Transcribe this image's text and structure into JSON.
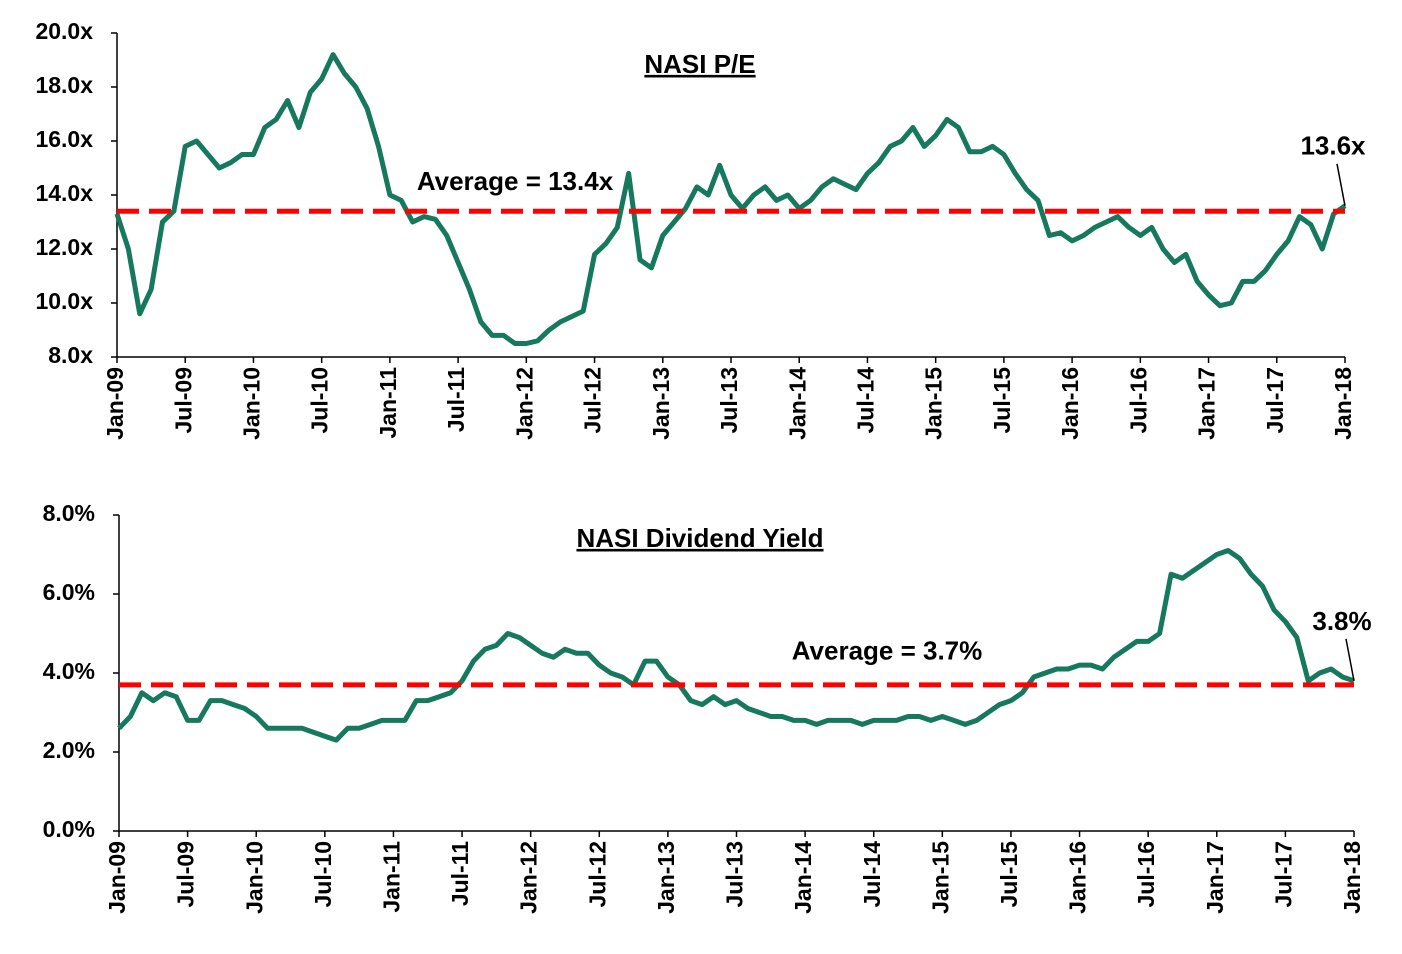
{
  "chart_data": [
    {
      "type": "line",
      "title": "NASI P/E",
      "x": [
        "Jan-09",
        "Feb-09",
        "Mar-09",
        "Apr-09",
        "May-09",
        "Jun-09",
        "Jul-09",
        "Aug-09",
        "Sep-09",
        "Oct-09",
        "Nov-09",
        "Dec-09",
        "Jan-10",
        "Feb-10",
        "Mar-10",
        "Apr-10",
        "May-10",
        "Jun-10",
        "Jul-10",
        "Aug-10",
        "Sep-10",
        "Oct-10",
        "Nov-10",
        "Dec-10",
        "Jan-11",
        "Feb-11",
        "Mar-11",
        "Apr-11",
        "May-11",
        "Jun-11",
        "Jul-11",
        "Aug-11",
        "Sep-11",
        "Oct-11",
        "Nov-11",
        "Dec-11",
        "Jan-12",
        "Feb-12",
        "Mar-12",
        "Apr-12",
        "May-12",
        "Jun-12",
        "Jul-12",
        "Aug-12",
        "Sep-12",
        "Oct-12",
        "Nov-12",
        "Dec-12",
        "Jan-13",
        "Feb-13",
        "Mar-13",
        "Apr-13",
        "May-13",
        "Jun-13",
        "Jul-13",
        "Aug-13",
        "Sep-13",
        "Oct-13",
        "Nov-13",
        "Dec-13",
        "Jan-14",
        "Feb-14",
        "Mar-14",
        "Apr-14",
        "May-14",
        "Jun-14",
        "Jul-14",
        "Aug-14",
        "Sep-14",
        "Oct-14",
        "Nov-14",
        "Dec-14",
        "Jan-15",
        "Feb-15",
        "Mar-15",
        "Apr-15",
        "May-15",
        "Jun-15",
        "Jul-15",
        "Aug-15",
        "Sep-15",
        "Oct-15",
        "Nov-15",
        "Dec-15",
        "Jan-16",
        "Feb-16",
        "Mar-16",
        "Apr-16",
        "May-16",
        "Jun-16",
        "Jul-16",
        "Aug-16",
        "Sep-16",
        "Oct-16",
        "Nov-16",
        "Dec-16",
        "Jan-17",
        "Feb-17",
        "Mar-17",
        "Apr-17",
        "May-17",
        "Jun-17",
        "Jul-17",
        "Aug-17",
        "Sep-17",
        "Oct-17",
        "Nov-17",
        "Dec-17",
        "Jan-18"
      ],
      "series": [
        {
          "name": "NASI P/E",
          "color": "#16785c",
          "values": [
            13.3,
            12.0,
            9.6,
            10.5,
            13.0,
            13.4,
            15.8,
            16.0,
            15.5,
            15.0,
            15.2,
            15.5,
            15.5,
            16.5,
            16.8,
            17.5,
            16.5,
            17.8,
            18.3,
            19.2,
            18.5,
            18.0,
            17.2,
            15.8,
            14.0,
            13.8,
            13.0,
            13.2,
            13.1,
            12.5,
            11.5,
            10.5,
            9.3,
            8.8,
            8.8,
            8.5,
            8.5,
            8.6,
            9.0,
            9.3,
            9.5,
            9.7,
            11.8,
            12.2,
            12.8,
            14.8,
            11.6,
            11.3,
            12.5,
            13.0,
            13.5,
            14.3,
            14.0,
            15.1,
            14.0,
            13.5,
            14.0,
            14.3,
            13.8,
            14.0,
            13.5,
            13.8,
            14.3,
            14.6,
            14.4,
            14.2,
            14.8,
            15.2,
            15.8,
            16.0,
            16.5,
            15.8,
            16.2,
            16.8,
            16.5,
            15.6,
            15.6,
            15.8,
            15.5,
            14.8,
            14.2,
            13.8,
            12.5,
            12.6,
            12.3,
            12.5,
            12.8,
            13.0,
            13.2,
            12.8,
            12.5,
            12.8,
            12.0,
            11.5,
            11.8,
            10.8,
            10.3,
            9.9,
            10.0,
            10.8,
            10.8,
            11.2,
            11.8,
            12.3,
            13.2,
            12.9,
            12.0,
            13.3,
            13.6
          ]
        }
      ],
      "xticks": [
        "Jan-09",
        "Jul-09",
        "Jan-10",
        "Jul-10",
        "Jan-11",
        "Jul-11",
        "Jan-12",
        "Jul-12",
        "Jan-13",
        "Jul-13",
        "Jan-14",
        "Jul-14",
        "Jan-15",
        "Jul-15",
        "Jan-16",
        "Jul-16",
        "Jan-17",
        "Jul-17",
        "Jan-18"
      ],
      "ylim": [
        8,
        20
      ],
      "yticks": [
        {
          "value": 8,
          "label": "8.0x"
        },
        {
          "value": 10,
          "label": "10.0x"
        },
        {
          "value": 12,
          "label": "12.0x"
        },
        {
          "value": 14,
          "label": "14.0x"
        },
        {
          "value": 16,
          "label": "16.0x"
        },
        {
          "value": 18,
          "label": "18.0x"
        },
        {
          "value": 20,
          "label": "20.0x"
        }
      ],
      "average": {
        "value": 13.4,
        "label": "Average = 13.4x",
        "color": "#ff0000"
      },
      "last_label": {
        "value": 13.6,
        "label": "13.6x"
      }
    },
    {
      "type": "line",
      "title": "NASI Dividend Yield",
      "x": [
        "Jan-09",
        "Feb-09",
        "Mar-09",
        "Apr-09",
        "May-09",
        "Jun-09",
        "Jul-09",
        "Aug-09",
        "Sep-09",
        "Oct-09",
        "Nov-09",
        "Dec-09",
        "Jan-10",
        "Feb-10",
        "Mar-10",
        "Apr-10",
        "May-10",
        "Jun-10",
        "Jul-10",
        "Aug-10",
        "Sep-10",
        "Oct-10",
        "Nov-10",
        "Dec-10",
        "Jan-11",
        "Feb-11",
        "Mar-11",
        "Apr-11",
        "May-11",
        "Jun-11",
        "Jul-11",
        "Aug-11",
        "Sep-11",
        "Oct-11",
        "Nov-11",
        "Dec-11",
        "Jan-12",
        "Feb-12",
        "Mar-12",
        "Apr-12",
        "May-12",
        "Jun-12",
        "Jul-12",
        "Aug-12",
        "Sep-12",
        "Oct-12",
        "Nov-12",
        "Dec-12",
        "Jan-13",
        "Feb-13",
        "Mar-13",
        "Apr-13",
        "May-13",
        "Jun-13",
        "Jul-13",
        "Aug-13",
        "Sep-13",
        "Oct-13",
        "Nov-13",
        "Dec-13",
        "Jan-14",
        "Feb-14",
        "Mar-14",
        "Apr-14",
        "May-14",
        "Jun-14",
        "Jul-14",
        "Aug-14",
        "Sep-14",
        "Oct-14",
        "Nov-14",
        "Dec-14",
        "Jan-15",
        "Feb-15",
        "Mar-15",
        "Apr-15",
        "May-15",
        "Jun-15",
        "Jul-15",
        "Aug-15",
        "Sep-15",
        "Oct-15",
        "Nov-15",
        "Dec-15",
        "Jan-16",
        "Feb-16",
        "Mar-16",
        "Apr-16",
        "May-16",
        "Jun-16",
        "Jul-16",
        "Aug-16",
        "Sep-16",
        "Oct-16",
        "Nov-16",
        "Dec-16",
        "Jan-17",
        "Feb-17",
        "Mar-17",
        "Apr-17",
        "May-17",
        "Jun-17",
        "Jul-17",
        "Aug-17",
        "Sep-17",
        "Oct-17",
        "Nov-17",
        "Dec-17",
        "Jan-18"
      ],
      "series": [
        {
          "name": "NASI Dividend Yield",
          "color": "#16785c",
          "values": [
            2.6,
            2.9,
            3.5,
            3.3,
            3.5,
            3.4,
            2.8,
            2.8,
            3.3,
            3.3,
            3.2,
            3.1,
            2.9,
            2.6,
            2.6,
            2.6,
            2.6,
            2.5,
            2.4,
            2.3,
            2.6,
            2.6,
            2.7,
            2.8,
            2.8,
            2.8,
            3.3,
            3.3,
            3.4,
            3.5,
            3.8,
            4.3,
            4.6,
            4.7,
            5.0,
            4.9,
            4.7,
            4.5,
            4.4,
            4.6,
            4.5,
            4.5,
            4.2,
            4.0,
            3.9,
            3.7,
            4.3,
            4.3,
            3.9,
            3.7,
            3.3,
            3.2,
            3.4,
            3.2,
            3.3,
            3.1,
            3.0,
            2.9,
            2.9,
            2.8,
            2.8,
            2.7,
            2.8,
            2.8,
            2.8,
            2.7,
            2.8,
            2.8,
            2.8,
            2.9,
            2.9,
            2.8,
            2.9,
            2.8,
            2.7,
            2.8,
            3.0,
            3.2,
            3.3,
            3.5,
            3.9,
            4.0,
            4.1,
            4.1,
            4.2,
            4.2,
            4.1,
            4.4,
            4.6,
            4.8,
            4.8,
            5.0,
            6.5,
            6.4,
            6.6,
            6.8,
            7.0,
            7.1,
            6.9,
            6.5,
            6.2,
            5.6,
            5.3,
            4.9,
            3.8,
            4.0,
            4.1,
            3.9,
            3.8
          ]
        }
      ],
      "xticks": [
        "Jan-09",
        "Jul-09",
        "Jan-10",
        "Jul-10",
        "Jan-11",
        "Jul-11",
        "Jan-12",
        "Jul-12",
        "Jan-13",
        "Jul-13",
        "Jan-14",
        "Jul-14",
        "Jan-15",
        "Jul-15",
        "Jan-16",
        "Jul-16",
        "Jan-17",
        "Jul-17",
        "Jan-18"
      ],
      "ylim": [
        0,
        8
      ],
      "yticks": [
        {
          "value": 0,
          "label": "0.0%"
        },
        {
          "value": 2,
          "label": "2.0%"
        },
        {
          "value": 4,
          "label": "4.0%"
        },
        {
          "value": 6,
          "label": "6.0%"
        },
        {
          "value": 8,
          "label": "8.0%"
        }
      ],
      "average": {
        "value": 3.7,
        "label": "Average = 3.7%",
        "color": "#ff0000"
      },
      "last_label": {
        "value": 3.8,
        "label": "3.8%"
      }
    }
  ]
}
